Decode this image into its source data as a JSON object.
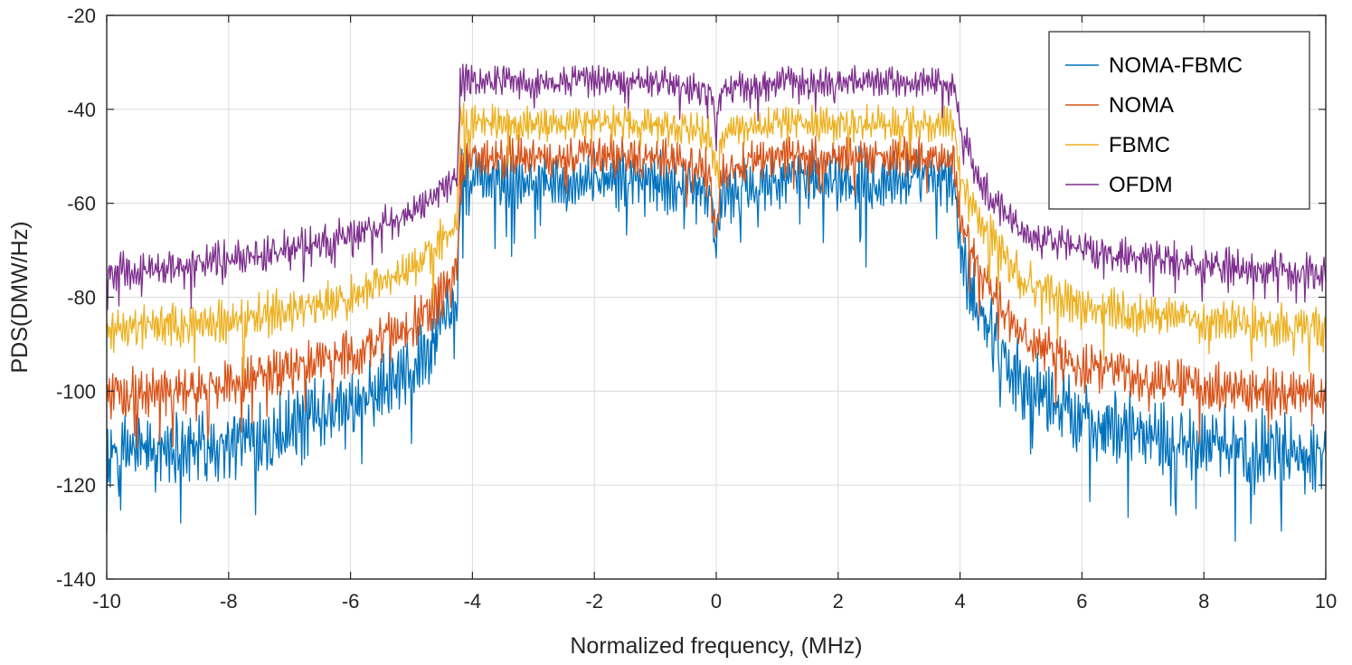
{
  "chart_data": {
    "type": "line",
    "title": "",
    "xlabel": "Normalized frequency, (MHz)",
    "ylabel": "PDS(DMW/Hz)",
    "xlim": [
      -10,
      10
    ],
    "ylim": [
      -140,
      -20
    ],
    "xticks": [
      -10,
      -8,
      -6,
      -4,
      -2,
      0,
      2,
      4,
      6,
      8,
      10
    ],
    "yticks": [
      -140,
      -120,
      -100,
      -80,
      -60,
      -40,
      -20
    ],
    "xtick_labels": [
      "-10",
      "-8",
      "-6",
      "-4",
      "-2",
      "0",
      "2",
      "4",
      "6",
      "8",
      "10"
    ],
    "ytick_labels": [
      "-140",
      "-120",
      "-100",
      "-80",
      "-60",
      "-40",
      "-20"
    ],
    "grid": true,
    "legend_position": "top-right",
    "series": [
      {
        "name": "NOMA-FBMC",
        "color": "#0072BD",
        "envelope": {
          "x": [
            -10,
            -8,
            -6,
            -5,
            -4.6,
            -4.25,
            -4.2,
            -3,
            -1,
            -0.1,
            0,
            0.1,
            1,
            3,
            3.9,
            4.0,
            4.3,
            5,
            6,
            8,
            10
          ],
          "y": [
            -113,
            -111,
            -104,
            -96,
            -89,
            -82,
            -55,
            -55,
            -55,
            -58,
            -70,
            -58,
            -55,
            -55,
            -55,
            -70,
            -82,
            -98,
            -106,
            -111,
            -113
          ]
        },
        "ripple_amplitude": 6
      },
      {
        "name": "NOMA",
        "color": "#D95319",
        "envelope": {
          "x": [
            -10,
            -8,
            -6,
            -5,
            -4.6,
            -4.25,
            -4.2,
            -3,
            -1,
            -0.1,
            0,
            0.1,
            1,
            3,
            3.9,
            4.0,
            4.3,
            5,
            6,
            8,
            10
          ],
          "y": [
            -101,
            -99,
            -92,
            -86,
            -81,
            -76,
            -50,
            -50,
            -50,
            -53,
            -66,
            -53,
            -50,
            -50,
            -50,
            -63,
            -74,
            -88,
            -95,
            -99,
            -101
          ]
        },
        "ripple_amplitude": 4
      },
      {
        "name": "FBMC",
        "color": "#EDB120",
        "envelope": {
          "x": [
            -10,
            -8,
            -6,
            -5,
            -4.6,
            -4.25,
            -4.2,
            -3,
            -1,
            -0.1,
            0,
            0.1,
            1,
            3,
            3.9,
            4.0,
            4.3,
            5,
            6,
            8,
            10
          ],
          "y": [
            -87,
            -85,
            -80,
            -74,
            -69,
            -63,
            -43,
            -43,
            -43,
            -45,
            -54,
            -45,
            -43,
            -43,
            -43,
            -55,
            -64,
            -76,
            -82,
            -85,
            -87
          ]
        },
        "ripple_amplitude": 3.5
      },
      {
        "name": "OFDM",
        "color": "#7E2F8E",
        "envelope": {
          "x": [
            -10,
            -8,
            -6,
            -5,
            -4.6,
            -4.25,
            -4.2,
            -3,
            -1,
            -0.1,
            0,
            0.1,
            1,
            3,
            3.9,
            4.0,
            4.3,
            5,
            6,
            8,
            10
          ],
          "y": [
            -75,
            -72,
            -67,
            -62,
            -58,
            -55,
            -34,
            -34,
            -34,
            -36,
            -42,
            -36,
            -34,
            -34,
            -34,
            -44,
            -55,
            -66,
            -70,
            -73,
            -75
          ]
        },
        "ripple_amplitude": 3
      }
    ]
  }
}
